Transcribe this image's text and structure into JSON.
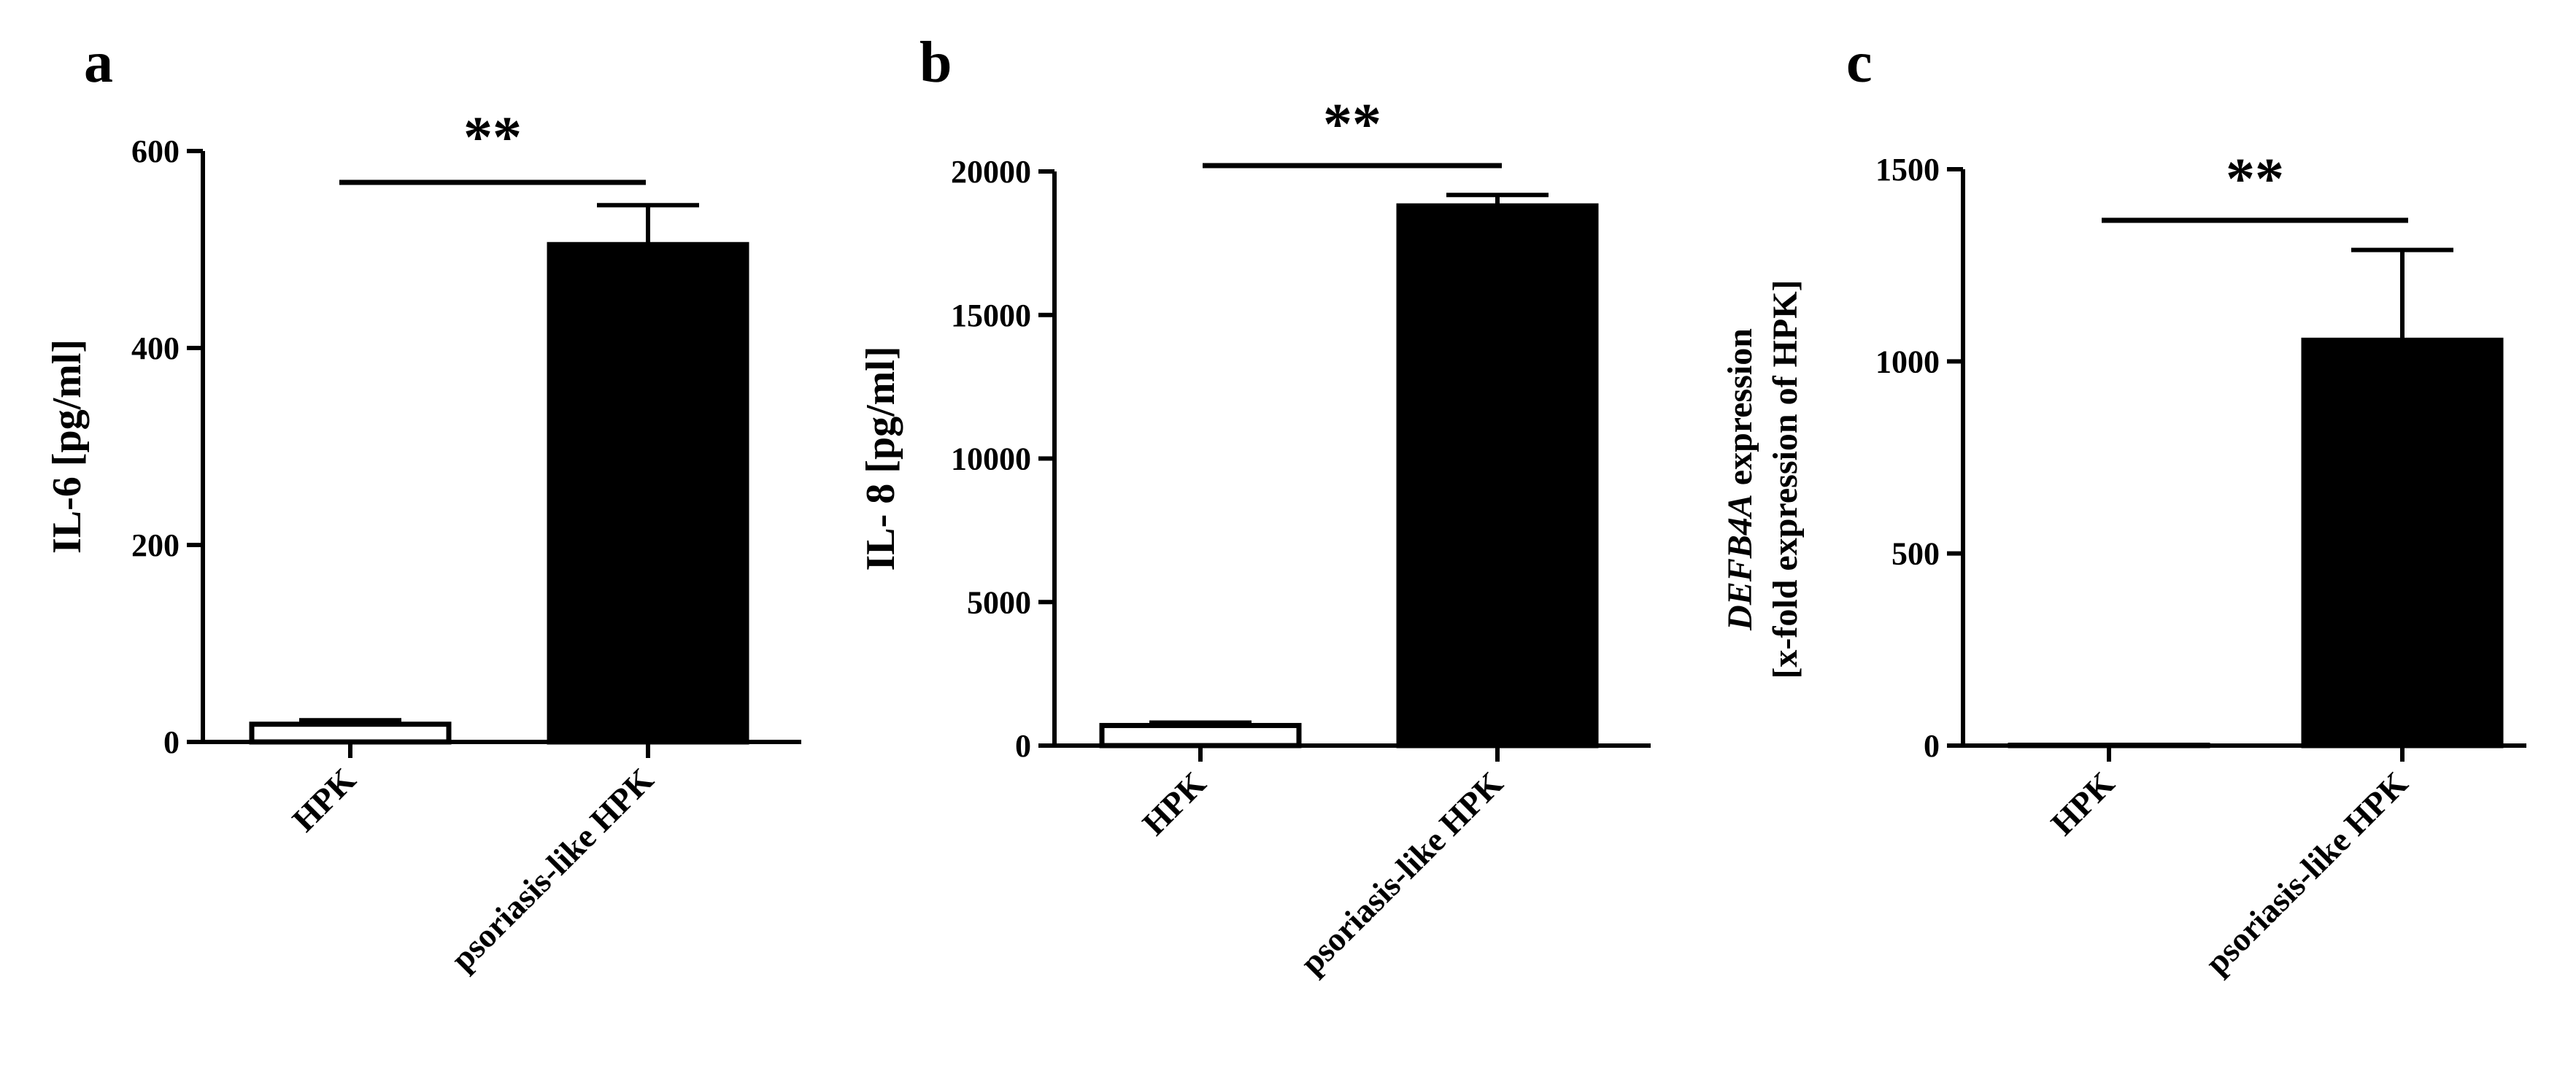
{
  "chart_data": [
    {
      "type": "bar",
      "panel": "a",
      "categories": [
        "HPK",
        "psoriasis-like HPK"
      ],
      "values": [
        18,
        505
      ],
      "errors": [
        4,
        40
      ],
      "ylabel": "IL-6 [pg/ml]",
      "ylim": [
        0,
        600
      ],
      "yticks": [
        "0",
        "200",
        "400",
        "600"
      ],
      "significance": "**",
      "bar_colors": [
        "#ffffff",
        "#000000"
      ]
    },
    {
      "type": "bar",
      "panel": "b",
      "categories": [
        "HPK",
        "psoriasis-like HPK"
      ],
      "values": [
        700,
        18800
      ],
      "errors": [
        100,
        380
      ],
      "ylabel": "IL- 8 [pg/ml]",
      "ylim": [
        0,
        20000
      ],
      "yticks": [
        "0",
        "5000",
        "10000",
        "15000",
        "20000"
      ],
      "significance": "**",
      "bar_colors": [
        "#ffffff",
        "#000000"
      ]
    },
    {
      "type": "bar",
      "panel": "c",
      "categories": [
        "HPK",
        "psoriasis-like HPK"
      ],
      "values": [
        1,
        1055
      ],
      "errors": [
        0,
        235
      ],
      "ylabel_line1_italic": "DEFB4A",
      "ylabel_line1_rest": " expression",
      "ylabel_line2": "[x-fold expression  of HPK]",
      "ylim": [
        0,
        1500
      ],
      "yticks": [
        "0",
        "500",
        "1000",
        "1500"
      ],
      "significance": "**",
      "bar_colors": [
        "#ffffff",
        "#000000"
      ]
    }
  ]
}
